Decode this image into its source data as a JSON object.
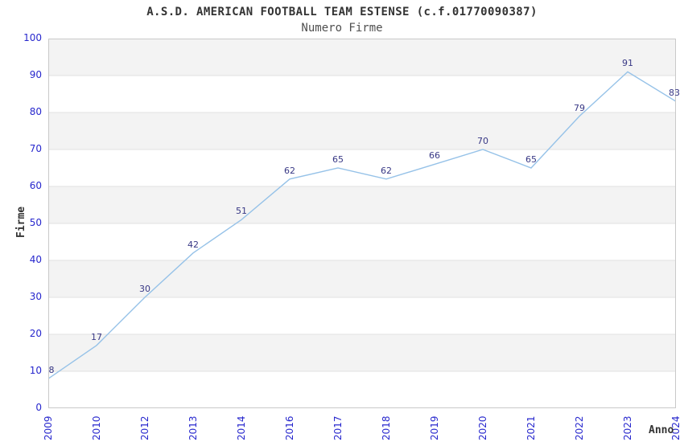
{
  "chart_data": {
    "type": "line",
    "title": "A.S.D. AMERICAN FOOTBALL TEAM ESTENSE (c.f.01770090387)",
    "subtitle": "Numero Firme",
    "xlabel": "Anno",
    "ylabel": "Firme",
    "categories": [
      "2009",
      "2010",
      "2012",
      "2013",
      "2014",
      "2016",
      "2017",
      "2018",
      "2019",
      "2020",
      "2021",
      "2022",
      "2023",
      "2024"
    ],
    "values": [
      8,
      17,
      30,
      42,
      51,
      62,
      65,
      62,
      66,
      70,
      65,
      79,
      91,
      83
    ],
    "ylim": [
      0,
      100
    ],
    "yticks": [
      0,
      10,
      20,
      30,
      40,
      50,
      60,
      70,
      80,
      90,
      100
    ],
    "grid": true,
    "legend_position": "none",
    "data_labels_shown": true
  },
  "colors": {
    "title": "#333333",
    "subtitle": "#4f4f4f",
    "axis_title": "#333333",
    "tick_label": "#2727cd",
    "data_label": "#383885",
    "line": "#96c2e8",
    "band": "#f3f3f3",
    "grid": "#e2e2e2",
    "border": "#c9c9c9",
    "background": "#ffffff"
  }
}
